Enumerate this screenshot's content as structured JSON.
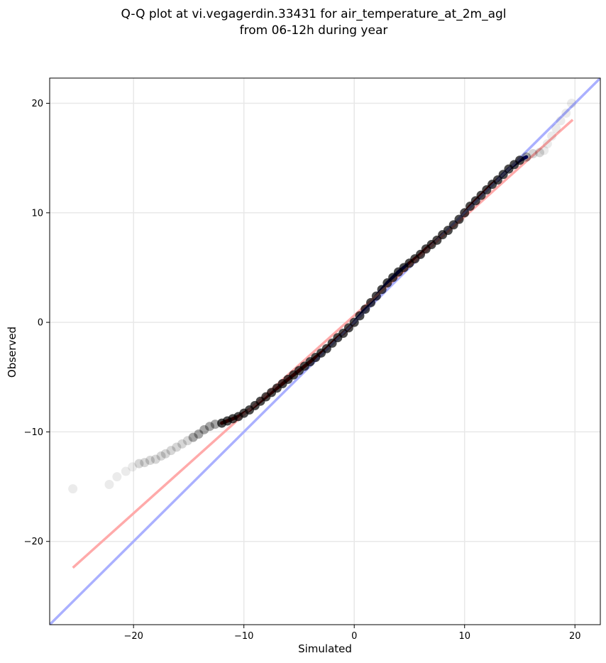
{
  "chart_data": {
    "type": "scatter",
    "title": "Q-Q plot at vi.vegagerdin.33431 for air_temperature_at_2m_agl",
    "subtitle": "from 06-12h during year",
    "xlabel": "Simulated",
    "ylabel": "Observed",
    "xlim": [
      -27.6,
      22.3
    ],
    "ylim": [
      -27.6,
      22.3
    ],
    "xticks": [
      -20,
      -10,
      0,
      10,
      20
    ],
    "yticks": [
      -20,
      -10,
      0,
      10,
      20
    ],
    "xtick_labels": [
      "−20",
      "−10",
      "0",
      "10",
      "20"
    ],
    "ytick_labels": [
      "−20",
      "−10",
      "0",
      "10",
      "20"
    ],
    "grid": true,
    "colors": {
      "points": "#000000",
      "identity_line": "#aab0ff",
      "fit_line": "#ffaaaa",
      "dense_blue": "#000080",
      "dense_red": "#8b0000"
    },
    "identity_line": {
      "x": [
        -27.6,
        22.3
      ],
      "y": [
        -27.6,
        22.3
      ]
    },
    "fit_line": {
      "x": [
        -25.5,
        19.8
      ],
      "y": [
        -22.4,
        18.5
      ]
    },
    "quantiles": {
      "x": [
        -25.5,
        -22.2,
        -21.5,
        -20.7,
        -20.1,
        -19.5,
        -19.0,
        -18.5,
        -18.0,
        -17.5,
        -17.1,
        -16.6,
        -16.1,
        -15.6,
        -15.1,
        -14.6,
        -14.1,
        -13.6,
        -13.1,
        -12.6,
        -12.0,
        -11.5,
        -11.0,
        -10.5,
        -10.0,
        -9.5,
        -9.0,
        -8.5,
        -8.0,
        -7.5,
        -7.0,
        -6.5,
        -6.0,
        -5.5,
        -5.0,
        -4.5,
        -4.0,
        -3.5,
        -3.0,
        -2.5,
        -2.0,
        -1.5,
        -1.0,
        -0.5,
        0.0,
        0.5,
        1.0,
        1.5,
        2.0,
        2.5,
        3.0,
        3.5,
        4.0,
        4.5,
        5.0,
        5.5,
        6.0,
        6.5,
        7.0,
        7.5,
        8.0,
        8.5,
        9.0,
        9.5,
        10.0,
        10.5,
        11.0,
        11.5,
        12.0,
        12.5,
        13.0,
        13.5,
        14.0,
        14.5,
        15.0,
        15.6,
        16.2,
        16.8,
        17.2,
        17.5,
        17.9,
        18.3,
        18.7,
        19.2,
        19.7
      ],
      "y": [
        -15.2,
        -14.8,
        -14.1,
        -13.6,
        -13.2,
        -12.9,
        -12.8,
        -12.6,
        -12.5,
        -12.2,
        -12.0,
        -11.7,
        -11.4,
        -11.1,
        -10.8,
        -10.5,
        -10.2,
        -9.8,
        -9.5,
        -9.3,
        -9.2,
        -9.0,
        -8.8,
        -8.6,
        -8.3,
        -8.0,
        -7.6,
        -7.2,
        -6.8,
        -6.4,
        -6.0,
        -5.6,
        -5.2,
        -4.8,
        -4.4,
        -4.0,
        -3.6,
        -3.2,
        -2.8,
        -2.4,
        -1.9,
        -1.4,
        -1.0,
        -0.5,
        0.0,
        0.6,
        1.2,
        1.8,
        2.4,
        3.0,
        3.6,
        4.1,
        4.6,
        5.0,
        5.4,
        5.8,
        6.2,
        6.7,
        7.1,
        7.5,
        8.0,
        8.4,
        8.9,
        9.4,
        10.0,
        10.6,
        11.1,
        11.6,
        12.1,
        12.6,
        13.0,
        13.5,
        14.0,
        14.4,
        14.8,
        15.1,
        15.4,
        15.5,
        15.7,
        16.3,
        17.0,
        17.7,
        18.4,
        19.1,
        20.0
      ]
    }
  }
}
